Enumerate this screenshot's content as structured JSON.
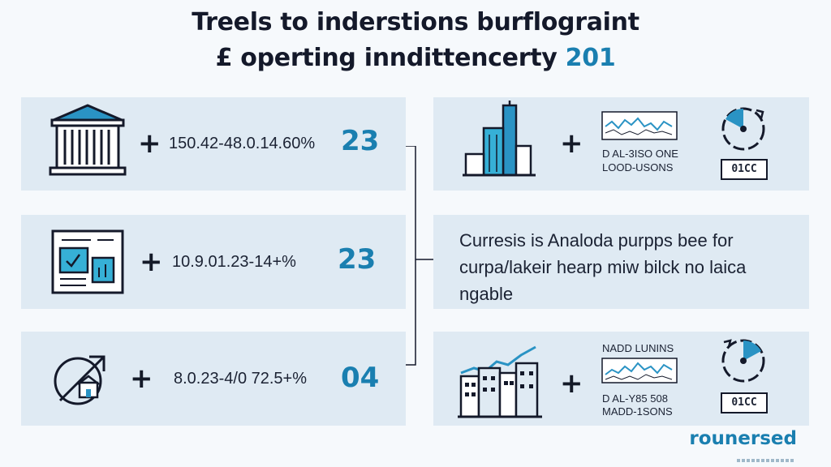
{
  "title": {
    "line1": "Treels to inderstions burflograint",
    "line2_prefix": "£ operting inndittencerty",
    "line2_accent": "201"
  },
  "left_rows": [
    {
      "icon": "bank-building-icon",
      "plus": "+",
      "formula": "150.42-48.0.14.60%",
      "value": "23"
    },
    {
      "icon": "document-chart-icon",
      "plus": "+",
      "formula": "10.9.01.23-14+%",
      "value": "23"
    },
    {
      "icon": "arrow-house-icon",
      "plus": "+",
      "formula": "8.0.23-4/0 72.5+%",
      "value": "04"
    }
  ],
  "right_top": {
    "icon": "skyscraper-icon",
    "plus": "+",
    "label_line1": "D AL-3ISO ONE",
    "label_line2": "LOOD-USONS",
    "badge_text": "01CC",
    "dial_icon": "cycle-dial-icon"
  },
  "right_middle": {
    "text": "Curresis is Analoda purpps bee for curpa/lakeir hearp miw bilck no laica ngable"
  },
  "right_bottom": {
    "icon": "city-growth-chart-icon",
    "plus": "+",
    "label_top": "NADD LUNINS",
    "label_line1": "D AL-Y85 508",
    "label_line2": "MADD-1SONS",
    "badge_text": "01CC",
    "dial_icon": "cycle-dial-icon"
  },
  "brand": "rounersed",
  "colors": {
    "accent": "#1a7fb0",
    "panel": "#dfeaf3",
    "ink": "#14192a"
  }
}
